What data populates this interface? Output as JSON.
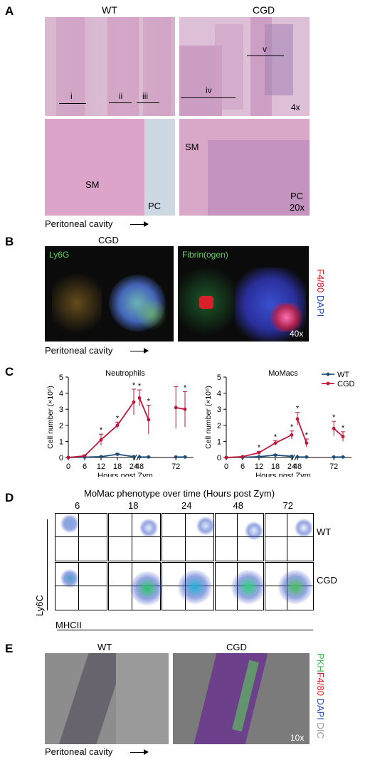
{
  "panelA": {
    "label": "A",
    "wt": "WT",
    "cgd": "CGD",
    "roman": [
      "i",
      "ii",
      "iii",
      "iv",
      "v"
    ],
    "mag_top": "4x",
    "sm": "SM",
    "pc": "PC",
    "mag_bot": "20x",
    "peritoneal": "Peritoneal cavity"
  },
  "panelB": {
    "label": "B",
    "title": "CGD",
    "ly6g": "Ly6G",
    "fibrin": "Fibrin(ogen)",
    "f480": "F4/80",
    "dapi": "DAPI",
    "mag": "40x",
    "peritoneal": "Peritoneal cavity"
  },
  "panelC": {
    "label": "C",
    "ylabel": "Cell number (×10⁶)",
    "xlabel": "Hours post Zym",
    "legend": [
      "WT",
      "CGD"
    ],
    "colors": {
      "wt": "#1f4e79",
      "cgd": "#c0183a"
    }
  },
  "chart_data": [
    {
      "type": "line",
      "title": "Neutrophils",
      "xlabel": "Hours post Zym",
      "ylabel": "Cell number (×10⁶)",
      "ylim": [
        0,
        5
      ],
      "x_ticks": [
        "0",
        "6",
        "12",
        "18",
        "24",
        "48",
        "72"
      ],
      "y_ticks": [
        0,
        1,
        2,
        3,
        4,
        5
      ],
      "axis_break": [
        24,
        48
      ],
      "series": [
        {
          "name": "WT",
          "x": [
            0,
            6,
            12,
            18,
            24,
            48,
            54,
            72,
            78
          ],
          "y": [
            0,
            0.02,
            0.05,
            0.2,
            0.05,
            0.03,
            0.03,
            0.03,
            0.03
          ],
          "err": [
            0,
            0,
            0.02,
            0.05,
            0.02,
            0.01,
            0.01,
            0.01,
            0.01
          ]
        },
        {
          "name": "CGD",
          "x": [
            0,
            6,
            12,
            18,
            24,
            48,
            54,
            72,
            78
          ],
          "y": [
            0,
            0.1,
            1.1,
            2.0,
            3.45,
            3.7,
            2.35,
            3.1,
            3.0
          ],
          "err": [
            0,
            0.05,
            0.35,
            0.2,
            0.8,
            0.5,
            0.9,
            1.3,
            1.1
          ]
        }
      ],
      "significant": [
        12,
        18,
        24,
        48,
        54,
        78
      ]
    },
    {
      "type": "line",
      "title": "MoMacs",
      "xlabel": "Hours post Zym",
      "ylabel": "Cell number (×10⁶)",
      "ylim": [
        0,
        5
      ],
      "x_ticks": [
        "0",
        "6",
        "12",
        "18",
        "24",
        "48",
        "72"
      ],
      "y_ticks": [
        0,
        1,
        2,
        3,
        4,
        5
      ],
      "axis_break": [
        24,
        48
      ],
      "series": [
        {
          "name": "WT",
          "x": [
            0,
            6,
            12,
            18,
            24,
            48,
            54,
            72,
            78
          ],
          "y": [
            0,
            0.01,
            0.05,
            0.15,
            0.07,
            0.03,
            0.03,
            0.03,
            0.03
          ],
          "err": [
            0,
            0,
            0.02,
            0.04,
            0.02,
            0.01,
            0.01,
            0.01,
            0.01
          ]
        },
        {
          "name": "CGD",
          "x": [
            0,
            6,
            12,
            18,
            24,
            48,
            54,
            72,
            78
          ],
          "y": [
            0,
            0.05,
            0.3,
            0.9,
            1.4,
            2.4,
            0.9,
            1.8,
            1.3
          ],
          "err": [
            0,
            0.02,
            0.08,
            0.15,
            0.25,
            0.4,
            0.25,
            0.45,
            0.3
          ]
        }
      ],
      "significant": [
        12,
        18,
        24,
        48,
        54,
        72,
        78
      ]
    }
  ],
  "panelD": {
    "label": "D",
    "title": "MoMac phenotype over time (Hours post Zym)",
    "times": [
      "6",
      "18",
      "24",
      "48",
      "72"
    ],
    "rows": [
      "WT",
      "CGD"
    ],
    "ylabel": "Ly6C",
    "xlabel": "MHCII"
  },
  "panelE": {
    "label": "E",
    "wt": "WT",
    "cgd": "CGD",
    "pkh": "PKH",
    "f480": "F4/80",
    "dapi": "DAPI",
    "dic": "DIC",
    "mag": "10x",
    "peritoneal": "Peritoneal cavity"
  }
}
